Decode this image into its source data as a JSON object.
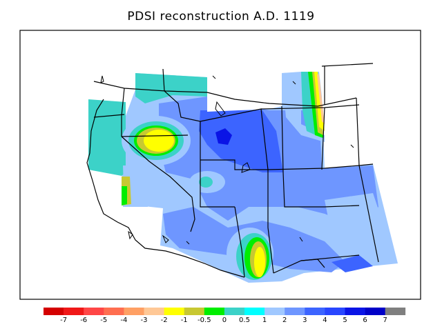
{
  "title": "PDSI reconstruction A.D. 1119",
  "legend": {
    "colors": [
      "#d40000",
      "#f01818",
      "#ff4646",
      "#ff6e50",
      "#ffa064",
      "#ffc896",
      "#ffff00",
      "#c8c832",
      "#00ee00",
      "#3cd2c8",
      "#00ffff",
      "#a0c8ff",
      "#6e96ff",
      "#3c64ff",
      "#2846ff",
      "#0a14e6",
      "#0000c8",
      "#7f7f7f"
    ],
    "ticks": [
      "-7",
      "-6",
      "-5",
      "-4",
      "-3",
      "-2",
      "-1",
      "-0.5",
      "0",
      "0.5",
      "1",
      "2",
      "3",
      "4",
      "5",
      "6",
      "7"
    ]
  }
}
